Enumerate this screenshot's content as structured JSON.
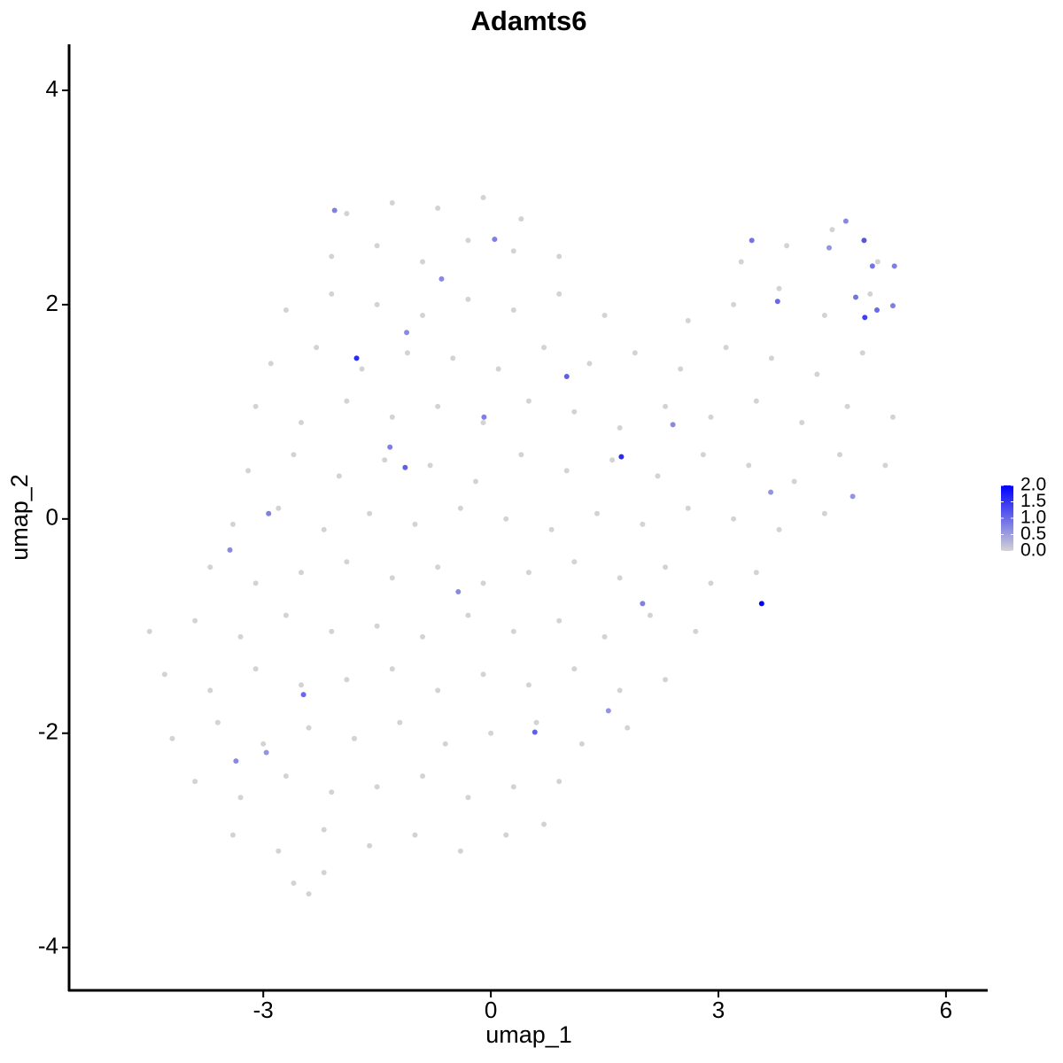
{
  "chart_data": {
    "type": "scatter",
    "title": "Adamts6",
    "x_label": "umap_1",
    "y_label": "umap_2",
    "xlim": [
      -5.56,
      6.55
    ],
    "ylim": [
      -4.4,
      4.43
    ],
    "xticks": [
      -3,
      0,
      3,
      6
    ],
    "yticks": [
      -4,
      -2,
      0,
      2,
      4
    ],
    "low_color": "#d3d3d3",
    "high_color": "#0000ff",
    "colorbar_lim": [
      0,
      2
    ],
    "colorbar_ticks": [
      {
        "value": 0,
        "label": "0.0"
      },
      {
        "value": 0.5,
        "label": "0.5"
      },
      {
        "value": 1,
        "label": "1.0"
      },
      {
        "value": 1.5,
        "label": "1.5"
      },
      {
        "value": 2,
        "label": "2.0"
      }
    ],
    "x": [
      -1.9,
      -1.3,
      -0.7,
      -0.1,
      0.4,
      -2.1,
      -1.5,
      -0.9,
      -0.3,
      0.3,
      0.9,
      3.3,
      3.9,
      4.5,
      5.1,
      -2.7,
      -2.1,
      -1.5,
      -0.9,
      -0.3,
      0.3,
      0.9,
      1.5,
      2.6,
      3.2,
      3.8,
      4.4,
      5.0,
      -2.9,
      -2.3,
      -1.7,
      -1.1,
      -0.5,
      0.1,
      0.7,
      1.3,
      1.9,
      2.5,
      3.1,
      3.7,
      4.3,
      4.9,
      -3.1,
      -2.5,
      -1.9,
      -1.3,
      -0.7,
      -0.1,
      0.5,
      1.1,
      1.7,
      2.3,
      2.9,
      3.5,
      4.1,
      4.7,
      5.3,
      -3.2,
      -2.6,
      -2.0,
      -1.4,
      -0.8,
      -0.2,
      0.4,
      1.0,
      1.6,
      2.2,
      2.8,
      3.4,
      4.0,
      4.6,
      5.2,
      -3.4,
      -2.8,
      -2.2,
      -1.6,
      -1.0,
      -0.4,
      0.2,
      0.8,
      1.4,
      2.0,
      2.6,
      3.2,
      3.8,
      4.4,
      -3.7,
      -3.1,
      -2.5,
      -1.9,
      -1.3,
      -0.7,
      -0.1,
      0.5,
      1.1,
      1.7,
      2.3,
      2.9,
      3.5,
      -4.5,
      -3.9,
      -3.3,
      -2.7,
      -2.1,
      -1.5,
      -0.9,
      -0.3,
      0.3,
      0.9,
      1.5,
      2.1,
      2.7,
      -4.3,
      -3.7,
      -3.1,
      -2.5,
      -1.9,
      -1.3,
      -0.7,
      -0.1,
      0.5,
      1.1,
      1.7,
      2.3,
      -4.2,
      -3.6,
      -3.0,
      -2.4,
      -1.8,
      -1.2,
      -0.6,
      0.0,
      0.6,
      1.2,
      1.8,
      -3.9,
      -3.3,
      -2.7,
      -2.1,
      -1.5,
      -0.9,
      -0.3,
      0.3,
      0.9,
      -3.4,
      -2.8,
      -2.2,
      -1.6,
      -1.0,
      -0.4,
      0.2,
      0.7,
      -2.6,
      -2.2,
      -2.4,
      3.57,
      -1.77,
      1.72,
      4.93,
      4.92,
      1.0,
      -1.13,
      0.58,
      -2.47,
      3.78,
      3.44,
      2.0,
      2.4,
      -2.93,
      5.03,
      5.32,
      4.81,
      5.09,
      -1.33,
      -0.09,
      -2.06,
      -1.11,
      -0.65,
      0.05,
      -3.44,
      -0.43,
      1.55,
      -3.36,
      -2.96,
      4.46,
      4.77,
      3.69,
      5.3,
      4.68
    ],
    "y": [
      2.85,
      2.95,
      2.9,
      3.0,
      2.8,
      2.45,
      2.55,
      2.4,
      2.6,
      2.5,
      2.45,
      2.4,
      2.55,
      2.7,
      2.4,
      1.95,
      2.1,
      2.0,
      1.9,
      2.05,
      1.95,
      2.1,
      1.9,
      1.85,
      2.0,
      2.15,
      1.9,
      2.1,
      1.45,
      1.6,
      1.4,
      1.55,
      1.5,
      1.4,
      1.6,
      1.45,
      1.55,
      1.4,
      1.6,
      1.5,
      1.35,
      1.55,
      1.05,
      0.9,
      1.1,
      0.95,
      1.05,
      0.9,
      1.1,
      1.0,
      0.85,
      1.05,
      0.95,
      1.1,
      0.9,
      1.05,
      0.95,
      0.45,
      0.6,
      0.4,
      0.55,
      0.5,
      0.35,
      0.6,
      0.45,
      0.55,
      0.4,
      0.6,
      0.5,
      0.35,
      0.6,
      0.5,
      -0.05,
      0.1,
      -0.1,
      0.05,
      -0.05,
      0.1,
      0.0,
      -0.1,
      0.05,
      -0.05,
      0.1,
      0.0,
      -0.1,
      0.05,
      -0.45,
      -0.6,
      -0.5,
      -0.4,
      -0.55,
      -0.45,
      -0.6,
      -0.5,
      -0.4,
      -0.55,
      -0.45,
      -0.6,
      -0.5,
      -1.05,
      -0.95,
      -1.1,
      -0.9,
      -1.05,
      -1.0,
      -1.1,
      -0.9,
      -1.05,
      -0.95,
      -1.1,
      -0.9,
      -1.05,
      -1.45,
      -1.6,
      -1.4,
      -1.55,
      -1.5,
      -1.4,
      -1.6,
      -1.45,
      -1.55,
      -1.4,
      -1.6,
      -1.5,
      -2.05,
      -1.9,
      -2.1,
      -1.95,
      -2.05,
      -1.9,
      -2.1,
      -2.0,
      -1.9,
      -2.1,
      -1.95,
      -2.45,
      -2.6,
      -2.4,
      -2.55,
      -2.5,
      -2.4,
      -2.6,
      -2.5,
      -2.45,
      -2.95,
      -3.1,
      -2.9,
      -3.05,
      -2.95,
      -3.1,
      -2.95,
      -2.85,
      -3.4,
      -3.3,
      -3.5,
      -0.79,
      1.5,
      0.58,
      1.88,
      2.6,
      1.33,
      0.48,
      -1.99,
      -1.64,
      2.03,
      2.6,
      -0.79,
      0.88,
      0.05,
      2.36,
      2.36,
      2.07,
      1.95,
      0.67,
      0.95,
      2.88,
      1.74,
      2.24,
      2.61,
      -0.29,
      -0.68,
      -1.79,
      -2.26,
      -2.18,
      2.53,
      0.21,
      0.25,
      1.99,
      2.78
    ],
    "values": [
      0,
      0,
      0,
      0,
      0,
      0,
      0,
      0,
      0,
      0,
      0,
      0,
      0,
      0,
      0,
      0,
      0,
      0,
      0,
      0,
      0,
      0,
      0,
      0,
      0,
      0,
      0,
      0,
      0,
      0,
      0,
      0,
      0,
      0,
      0,
      0,
      0,
      0,
      0,
      0,
      0,
      0,
      0,
      0,
      0,
      0,
      0,
      0,
      0,
      0,
      0,
      0,
      0,
      0,
      0,
      0,
      0,
      0,
      0,
      0,
      0,
      0,
      0,
      0,
      0,
      0,
      0,
      0,
      0,
      0,
      0,
      0,
      0,
      0,
      0,
      0,
      0,
      0,
      0,
      0,
      0,
      0,
      0,
      0,
      0,
      0,
      0,
      0,
      0,
      0,
      0,
      0,
      0,
      0,
      0,
      0,
      0,
      0,
      0,
      0,
      0,
      0,
      0,
      0,
      0,
      0,
      0,
      0,
      0,
      0,
      0,
      0,
      0,
      0,
      0,
      0,
      0,
      0,
      0,
      0,
      0,
      0,
      0,
      0,
      0,
      0,
      0,
      0,
      0,
      0,
      0,
      0,
      0,
      0,
      0,
      0,
      0,
      0,
      0,
      0,
      0,
      0,
      0,
      0,
      0,
      0,
      0,
      0,
      0,
      0,
      0,
      0,
      0,
      0,
      0,
      2.0,
      1.6,
      1.6,
      1.4,
      1.2,
      1.1,
      1.1,
      1.1,
      1.0,
      1.0,
      0.9,
      0.8,
      0.7,
      0.8,
      0.9,
      0.8,
      0.9,
      1.0,
      0.8,
      0.8,
      0.8,
      0.7,
      0.7,
      0.8,
      0.7,
      0.7,
      0.6,
      0.7,
      0.6,
      0.6,
      0.6,
      0.6,
      0.8,
      0.7
    ]
  }
}
